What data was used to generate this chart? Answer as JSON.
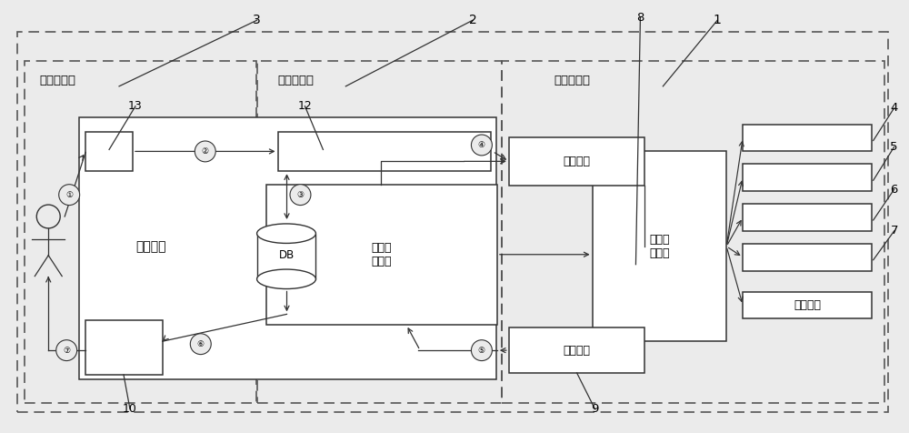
{
  "bg_color": "#ebebeb",
  "fig_bg": "#ebebeb",
  "layer1_label": "数据采集层",
  "layer2_label": "数据处理层",
  "layer3_label": "数据展示层",
  "num_labels": [
    "1",
    "2",
    "3",
    "4",
    "5",
    "6",
    "7",
    "8",
    "9",
    "10",
    "12",
    "13"
  ],
  "box_config_label": "配置文件",
  "box_collect_engine_label": "数据采\n集引擎",
  "box_collect_script_label": "数据采\n集脚本",
  "box_collect_label": "数据采集",
  "box_biz_label": "业务引擎",
  "box_db_label": "DB",
  "other_device_label": "其它设备",
  "circle_labels": [
    "①",
    "②",
    "③",
    "④",
    "⑤",
    "⑥",
    "⑦"
  ]
}
